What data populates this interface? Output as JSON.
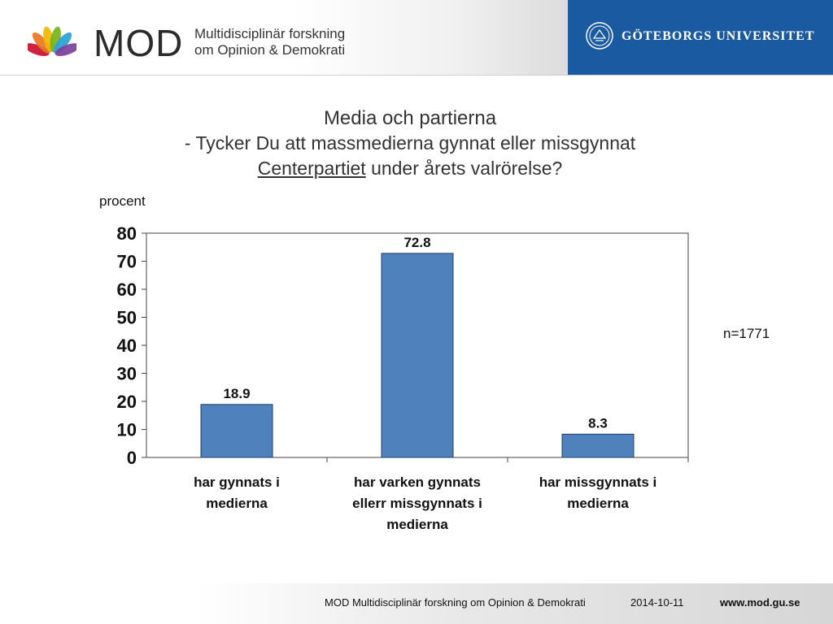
{
  "header": {
    "brand": "MOD",
    "brand_line1": "Multidisciplinär forskning",
    "brand_line2": "om Opinion & Demokrati",
    "university": "GÖTEBORGS UNIVERSITET",
    "petal_colors": [
      "#c8102e",
      "#e87722",
      "#f2b705",
      "#7ab317",
      "#2a9fd6",
      "#7b3f98"
    ],
    "university_color": "#1a5aa0"
  },
  "chart_data": {
    "type": "bar",
    "title": "Media och partierna",
    "subtitle_prefix": "- Tycker Du att massmedierna gynnat eller missgynnat",
    "subtitle_party": "Centerpartiet",
    "subtitle_suffix": "under årets valrörelse?",
    "ylabel": "procent",
    "xlabel": "",
    "categories": [
      [
        "har gynnats i",
        "medierna"
      ],
      [
        "har varken gynnats",
        "ellerr missgynnats i",
        "medierna"
      ],
      [
        "har missgynnats i",
        "medierna"
      ]
    ],
    "values": [
      18.9,
      72.8,
      8.3
    ],
    "value_labels": [
      "18.9",
      "72.8",
      "8.3"
    ],
    "ylim": [
      0,
      80
    ],
    "yticks": [
      "0",
      "10",
      "20",
      "30",
      "40",
      "50",
      "60",
      "70",
      "80"
    ],
    "grid": false,
    "bar_color": "#4f81bd",
    "note": "n=1771"
  },
  "footer": {
    "text": "MOD Multidisciplinär forskning om Opinion & Demokrati",
    "date": "2014-10-11",
    "url": "www.mod.gu.se"
  }
}
